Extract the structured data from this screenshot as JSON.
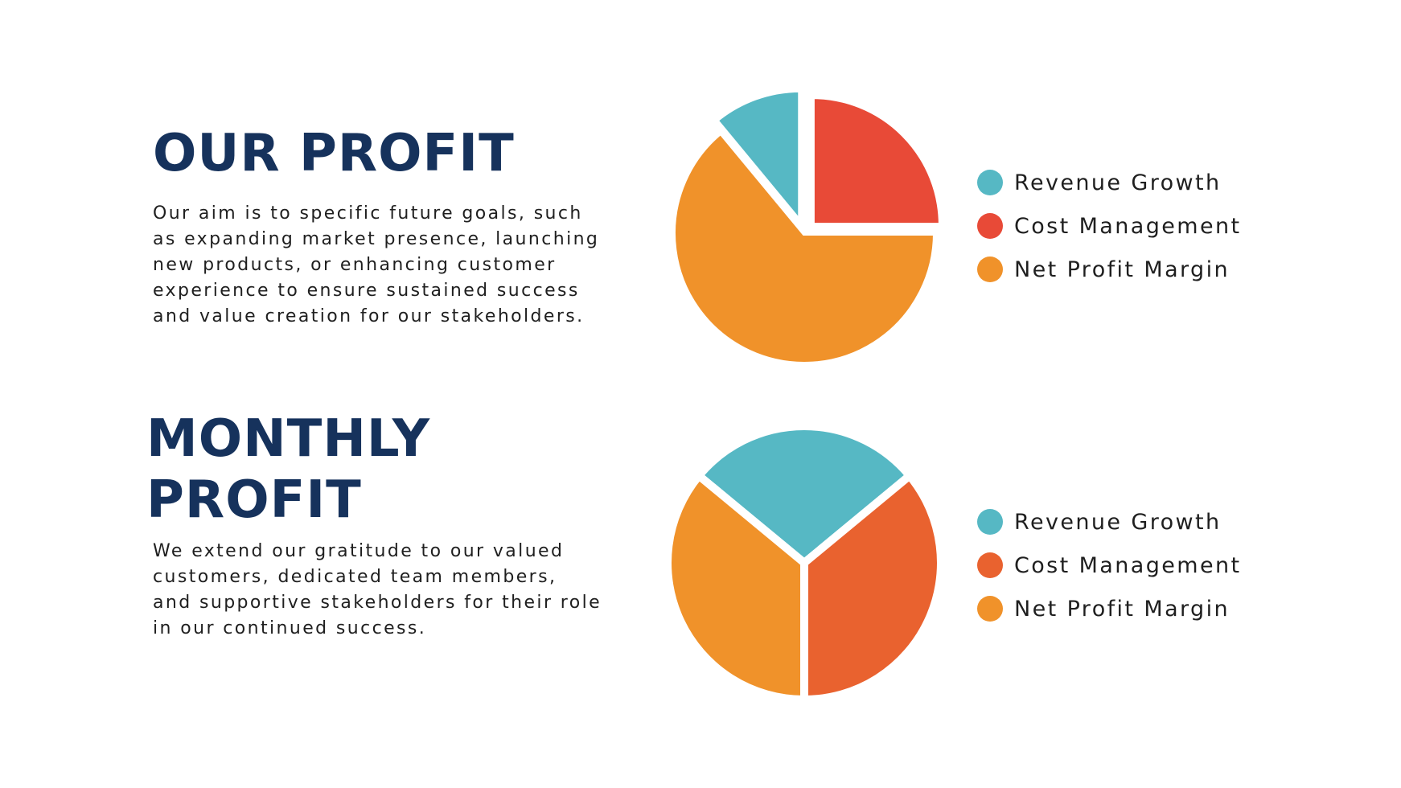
{
  "section_1": {
    "title": "OUR PROFIT",
    "body": "Our aim is to specific future goals, such as expanding market presence, launching new products, or enhancing customer experience to ensure sustained success and value creation for our stakeholders."
  },
  "section_2": {
    "title": "MONTHLY PROFIT",
    "body": "We extend our gratitude to our valued customers, dedicated team members, and supportive stakeholders for their role in our continued success."
  },
  "chart_data": [
    {
      "type": "pie",
      "title": "",
      "categories": [
        "Revenue Growth",
        "Cost Management",
        "Net Profit Margin"
      ],
      "values": [
        11,
        25,
        64
      ],
      "exploded": [
        "Revenue Growth",
        "Cost Management"
      ],
      "colors": [
        "#56b8c4",
        "#e84a37",
        "#f0922a"
      ],
      "legend": "right"
    },
    {
      "type": "pie",
      "title": "",
      "categories": [
        "Revenue Growth",
        "Cost Management",
        "Net Profit Margin"
      ],
      "values": [
        28,
        36,
        36
      ],
      "colors": [
        "#56b8c4",
        "#e9622f",
        "#f0922a"
      ],
      "legend": "right"
    }
  ]
}
